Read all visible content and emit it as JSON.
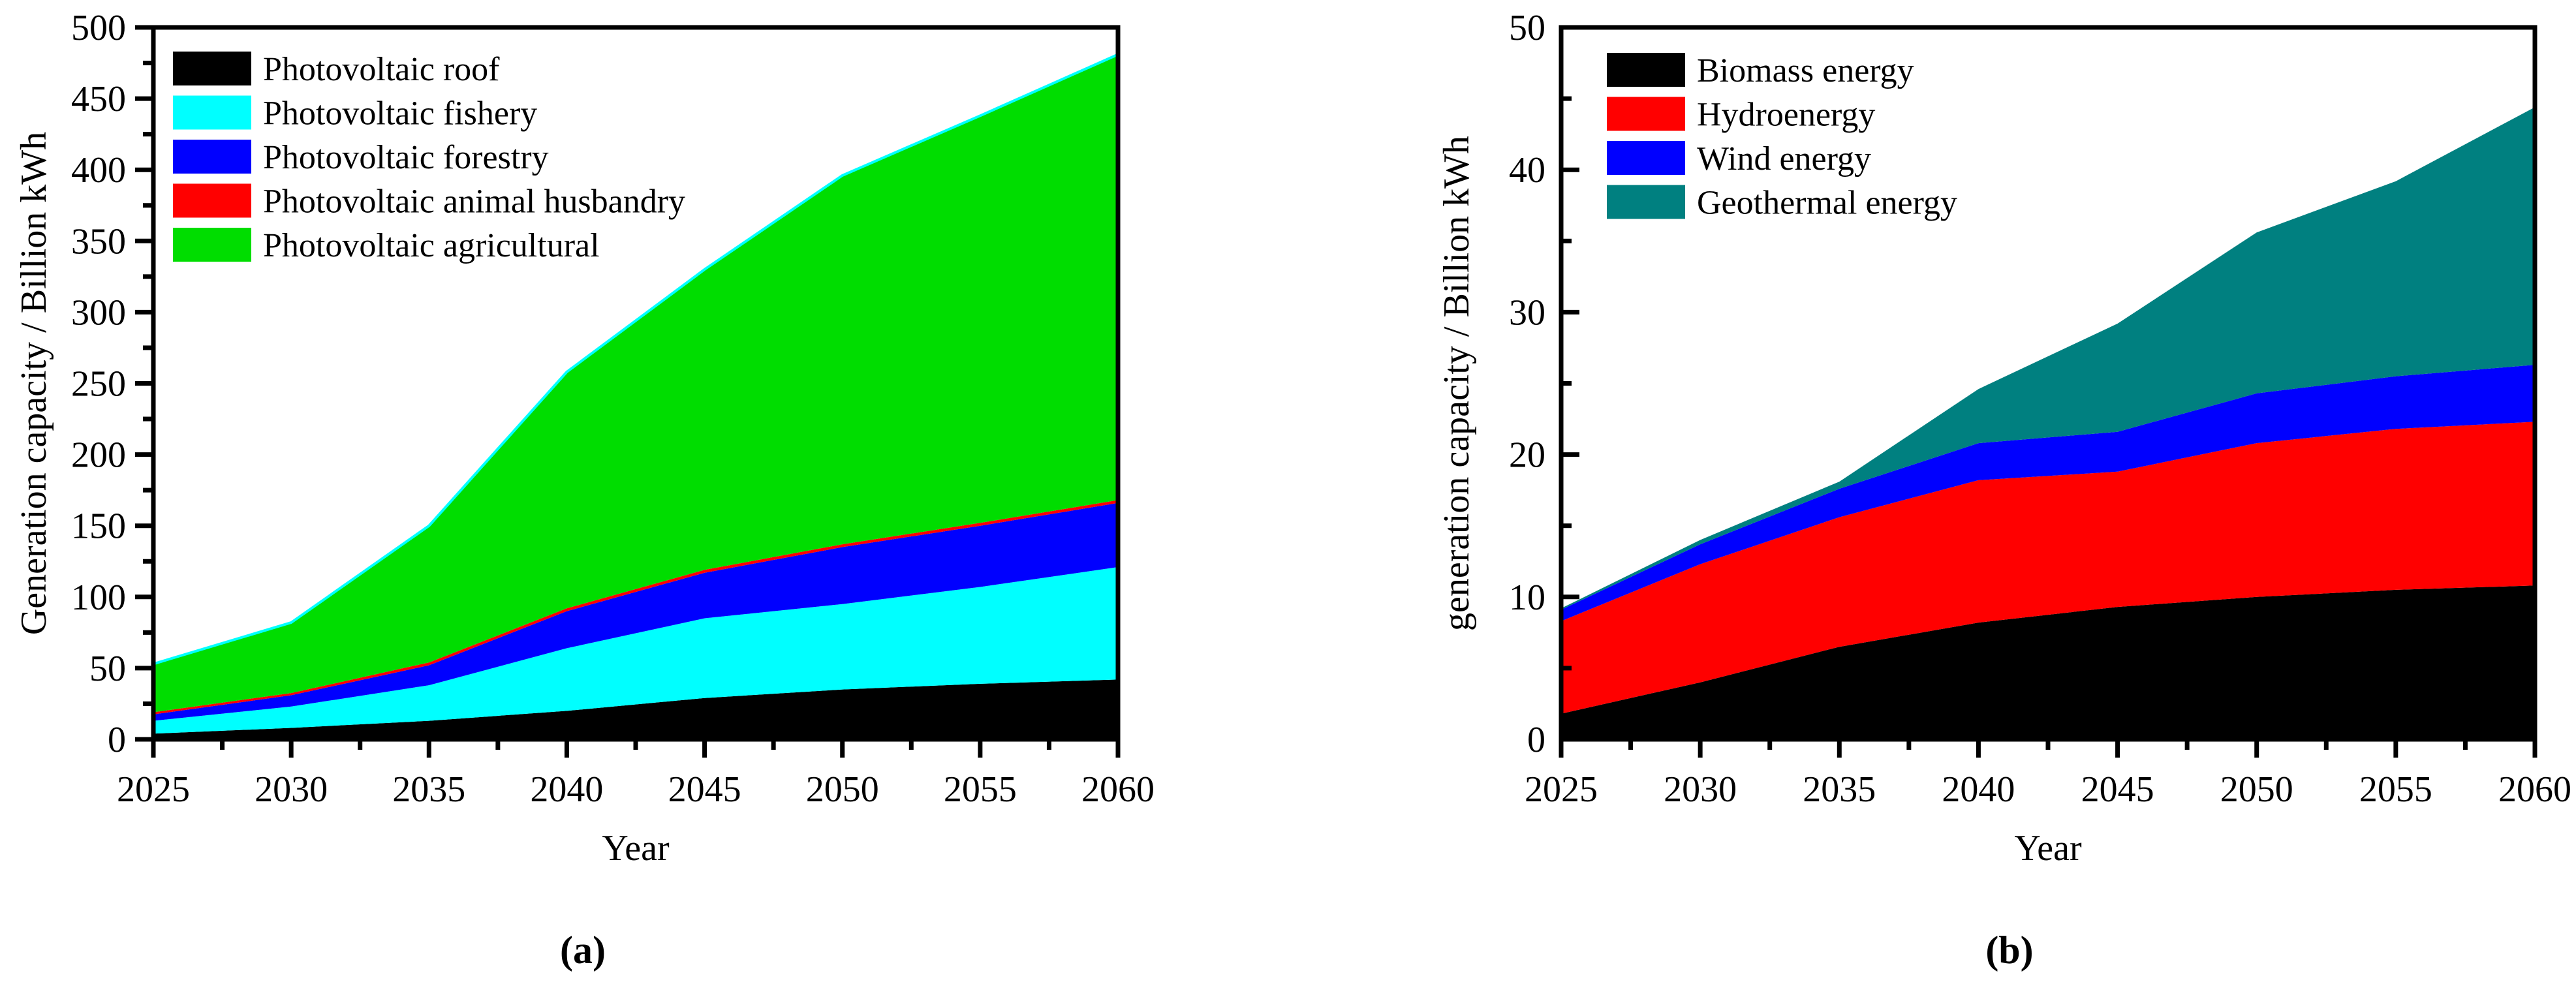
{
  "figure": {
    "background": "#ffffff",
    "text_color": "#000000"
  },
  "chart_data": [
    {
      "id": "a",
      "type": "area",
      "stacked": true,
      "caption": "(a)",
      "xlabel": "Year",
      "ylabel": "Generation capacity / Billion kWh",
      "x": [
        2025,
        2030,
        2035,
        2040,
        2045,
        2050,
        2055,
        2060
      ],
      "xlim": [
        2025,
        2060
      ],
      "ylim": [
        0,
        500
      ],
      "x_major_step": 5,
      "x_minor_step": 2.5,
      "y_major_step": 50,
      "y_minor_step": 25,
      "grid": false,
      "legend_position": "top-left",
      "y_ticks_direction": "out",
      "top_edge_color": "#00ffff",
      "series": [
        {
          "name": "Photovoltaic roof",
          "color": "#000000",
          "values": [
            4,
            8,
            13,
            20,
            29,
            35,
            39,
            42
          ]
        },
        {
          "name": "Photovoltaic fishery",
          "color": "#00ffff",
          "values": [
            9,
            15,
            25,
            44,
            56,
            60,
            68,
            79
          ]
        },
        {
          "name": "Photovoltaic forestry",
          "color": "#0000ff",
          "values": [
            4.5,
            8,
            14,
            26,
            32,
            40,
            43,
            45
          ]
        },
        {
          "name": "Photovoltaic animal husbandry",
          "color": "#ff0000",
          "values": [
            1.5,
            1.5,
            2,
            2,
            2,
            2,
            2,
            2
          ]
        },
        {
          "name": "Photovoltaic agricultural",
          "color": "#00dd00",
          "values": [
            34,
            49.5,
            96,
            166,
            211,
            259,
            286,
            313
          ]
        }
      ]
    },
    {
      "id": "b",
      "type": "area",
      "stacked": true,
      "caption": "(b)",
      "xlabel": "Year",
      "ylabel": "generation capacity / Billion kWh",
      "x": [
        2025,
        2030,
        2035,
        2040,
        2045,
        2050,
        2055,
        2060
      ],
      "xlim": [
        2025,
        2060
      ],
      "ylim": [
        0,
        50
      ],
      "x_major_step": 5,
      "x_minor_step": 2.5,
      "y_major_step": 10,
      "y_minor_step": 5,
      "grid": false,
      "legend_position": "top-left",
      "y_ticks_direction": "in",
      "top_edge_color": null,
      "series": [
        {
          "name": "Biomass energy",
          "color": "#000000",
          "values": [
            1.8,
            4,
            6.5,
            8.2,
            9.3,
            10,
            10.5,
            10.8
          ]
        },
        {
          "name": "Hydroenergy",
          "color": "#ff0000",
          "values": [
            6.5,
            8.3,
            9.1,
            10,
            9.5,
            10.8,
            11.3,
            11.5
          ]
        },
        {
          "name": "Wind energy",
          "color": "#0000ff",
          "values": [
            0.8,
            1.4,
            2,
            2.6,
            2.8,
            3.5,
            3.7,
            4
          ]
        },
        {
          "name": "Geothermal energy",
          "color": "#008080",
          "values": [
            0.1,
            0.3,
            0.5,
            3.8,
            7.6,
            11.3,
            13.7,
            18.1
          ]
        }
      ]
    }
  ]
}
